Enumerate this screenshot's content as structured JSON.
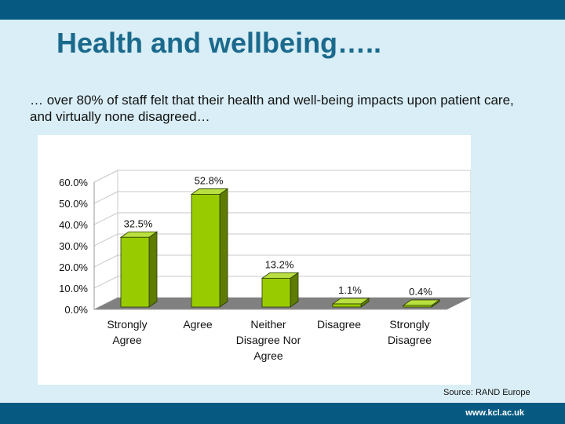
{
  "slide": {
    "title": "Health and wellbeing…..",
    "subtitle": "… over 80% of staff felt that their health and well-being impacts upon patient care, and virtually none disagreed…",
    "source": "Source:  RAND Europe",
    "site_url": "www.kcl.ac.uk"
  },
  "colors": {
    "brand_bar": "#065a82",
    "background": "#d9eef6",
    "title": "#1b6a8d",
    "bar_front": "#99cc00",
    "bar_side": "#5d7c00",
    "bar_top": "#b9e040",
    "floor": "#808080"
  },
  "chart_data": {
    "type": "bar",
    "style": "3d",
    "categories": [
      [
        "Strongly",
        "Agree"
      ],
      [
        "Agree"
      ],
      [
        "Neither",
        "Disagree Nor",
        "Agree"
      ],
      [
        "Disagree"
      ],
      [
        "Strongly",
        "Disagree"
      ]
    ],
    "values": [
      32.5,
      52.8,
      13.2,
      1.1,
      0.4
    ],
    "data_labels": [
      "32.5%",
      "52.8%",
      "13.2%",
      "1.1%",
      "0.4%"
    ],
    "y_ticks": [
      "0.0%",
      "10.0%",
      "20.0%",
      "30.0%",
      "40.0%",
      "50.0%",
      "60.0%"
    ],
    "ylim": [
      0,
      60
    ],
    "grid": true,
    "legend": "none"
  }
}
